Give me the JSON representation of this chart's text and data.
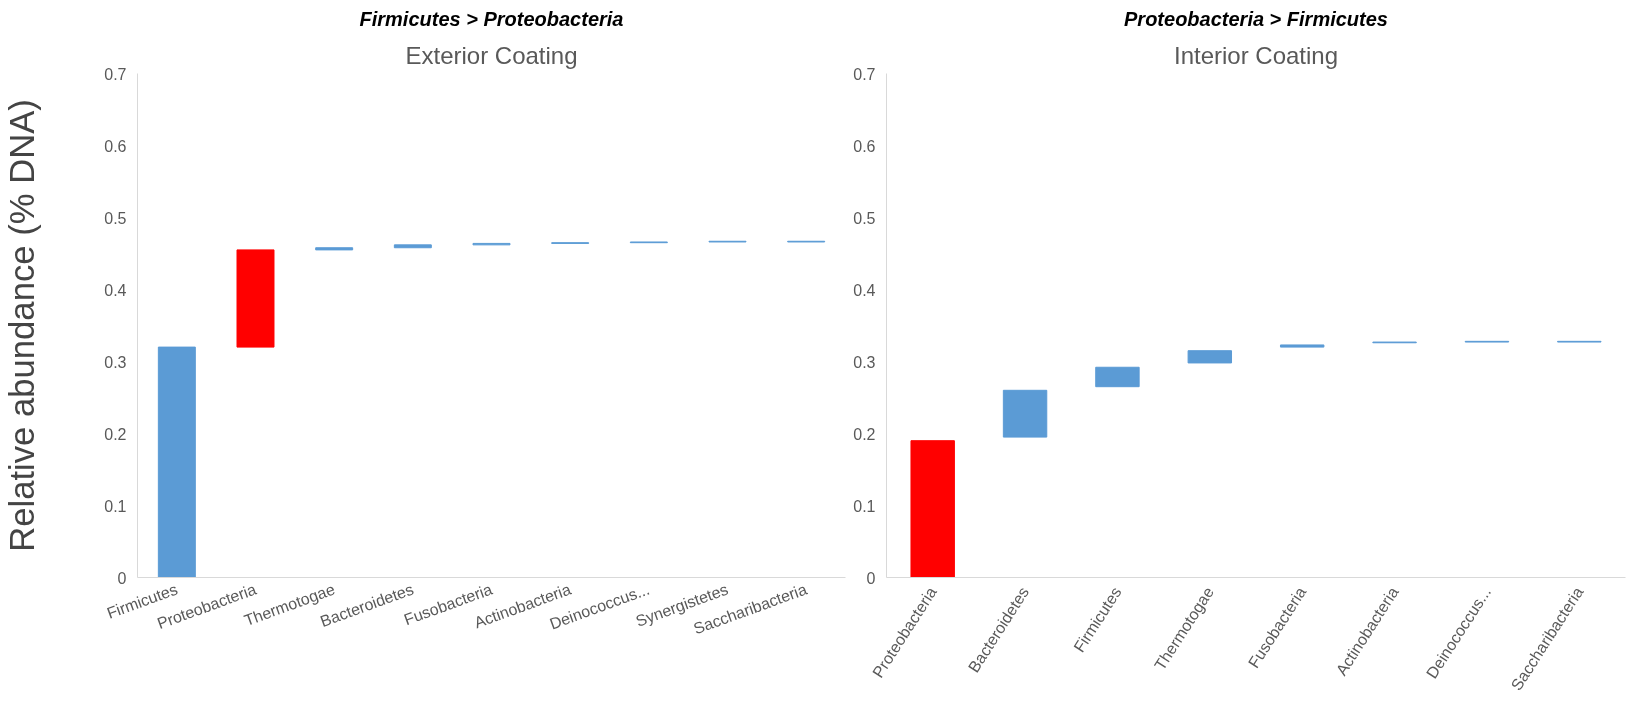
{
  "chart_data": [
    {
      "type": "bar",
      "title": "Exterior Coating",
      "ylabel": "Relative abundance (% DNA)",
      "annotations": [
        "Firmicutes > Proteobacteria"
      ],
      "categories": [
        "Firmicutes",
        "Proteobacteria",
        "Thermotogae",
        "Bacteroidetes",
        "Fusobacteria",
        "Actinobacteria",
        "Deinococcus...",
        "Synergistetes",
        "Saccharibacteria"
      ],
      "base": [
        0,
        0.32,
        0.455,
        0.458,
        0.462,
        0.464,
        0.465,
        0.466,
        0.466
      ],
      "values": [
        0.32,
        0.135,
        0.003,
        0.004,
        0.002,
        0.001,
        0.001,
        0.001,
        0.001
      ],
      "colors": [
        "#5b9bd5",
        "#ff0000",
        "#5b9bd5",
        "#5b9bd5",
        "#5b9bd5",
        "#5b9bd5",
        "#5b9bd5",
        "#5b9bd5",
        "#5b9bd5"
      ],
      "ylim": [
        0,
        0.7
      ],
      "yticks": [
        0,
        0.1,
        0.2,
        0.3,
        0.4,
        0.5,
        0.6,
        0.7
      ],
      "grid": false
    },
    {
      "type": "bar",
      "title": "Interior Coating",
      "annotations": [
        "Proteobacteria > Firmicutes"
      ],
      "categories": [
        "Proteobacteria",
        "Bacteroidetes",
        "Firmicutes",
        "Thermotogae",
        "Fusobacteria",
        "Actinobacteria",
        "Deinococcus...",
        "Saccharibacteria"
      ],
      "base": [
        0,
        0.195,
        0.265,
        0.298,
        0.32,
        0.326,
        0.327,
        0.327
      ],
      "values": [
        0.19,
        0.065,
        0.027,
        0.017,
        0.003,
        0.001,
        0.001,
        0.001
      ],
      "colors": [
        "#ff0000",
        "#5b9bd5",
        "#5b9bd5",
        "#5b9bd5",
        "#5b9bd5",
        "#5b9bd5",
        "#5b9bd5",
        "#5b9bd5"
      ],
      "ylim": [
        0,
        0.7
      ],
      "yticks": [
        0,
        0.1,
        0.2,
        0.3,
        0.4,
        0.5,
        0.6,
        0.7
      ],
      "grid": false
    }
  ]
}
